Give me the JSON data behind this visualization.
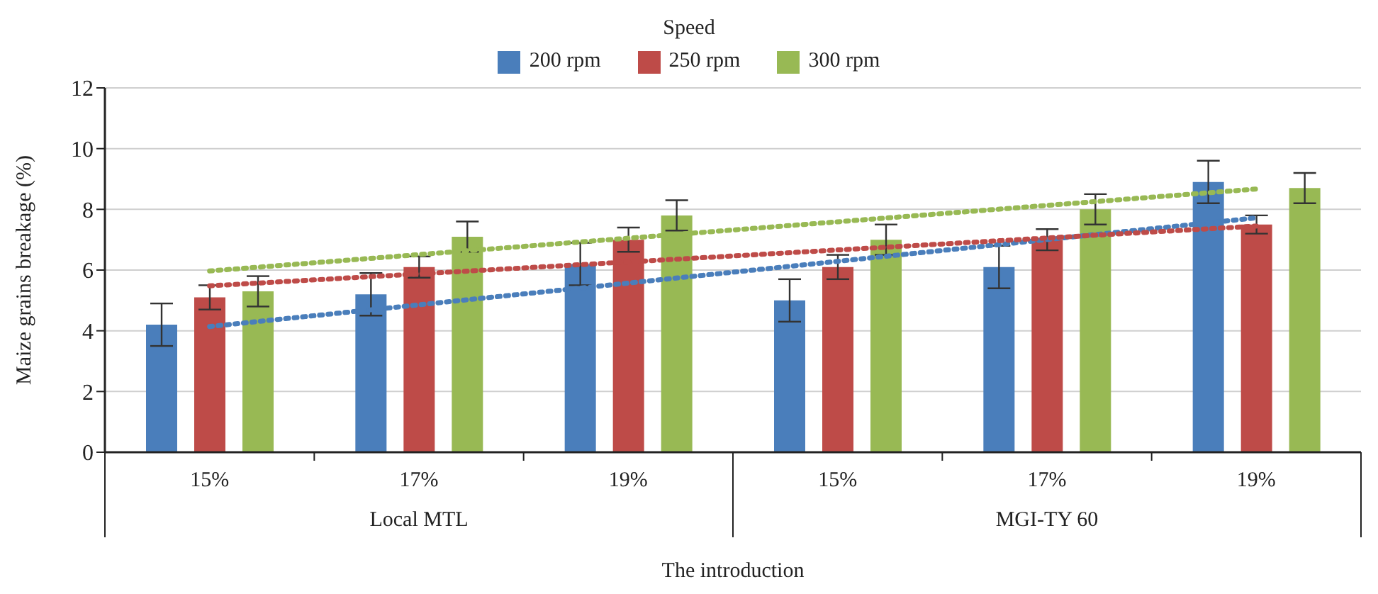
{
  "chart_data": {
    "type": "bar",
    "xlabel": "The introduction",
    "ylabel": "Maize grains breakage (%)",
    "legend_title": "Speed",
    "legend": "top",
    "grid": "y",
    "categories": [
      "15%",
      "17%",
      "19%",
      "15%",
      "17%",
      "19%"
    ],
    "annotations": [
      "Local MTL",
      "MGI-TY 60"
    ],
    "ylim": [
      0,
      12
    ],
    "yticks": [
      0,
      2,
      4,
      6,
      8,
      10,
      12
    ],
    "series": [
      {
        "name": "200 rpm",
        "color": "#4a7ebb",
        "values": [
          4.2,
          5.2,
          6.2,
          5.0,
          6.1,
          8.9
        ],
        "errors": [
          0.7,
          0.7,
          0.7,
          0.7,
          0.7,
          0.7
        ]
      },
      {
        "name": "250 rpm",
        "color": "#be4b48",
        "values": [
          5.1,
          6.1,
          7.0,
          6.1,
          7.0,
          7.5
        ],
        "errors": [
          0.4,
          0.35,
          0.4,
          0.4,
          0.35,
          0.3
        ]
      },
      {
        "name": "300 rpm",
        "color": "#98b954",
        "values": [
          5.3,
          7.1,
          7.8,
          7.0,
          8.0,
          8.7
        ],
        "errors": [
          0.5,
          0.5,
          0.5,
          0.5,
          0.5,
          0.5
        ]
      },
      {
        "type": "line",
        "color": "#4a7ebb",
        "line_style": "dotted",
        "marker": "none",
        "values": [
          4.14,
          null,
          null,
          null,
          null,
          7.72
        ]
      },
      {
        "type": "line",
        "color": "#be4b48",
        "line_style": "dotted",
        "marker": "none",
        "values": [
          5.48,
          null,
          null,
          null,
          null,
          7.45
        ]
      },
      {
        "type": "line",
        "color": "#98b954",
        "line_style": "dotted",
        "marker": "none",
        "values": [
          5.97,
          null,
          null,
          null,
          null,
          8.67
        ]
      }
    ]
  }
}
